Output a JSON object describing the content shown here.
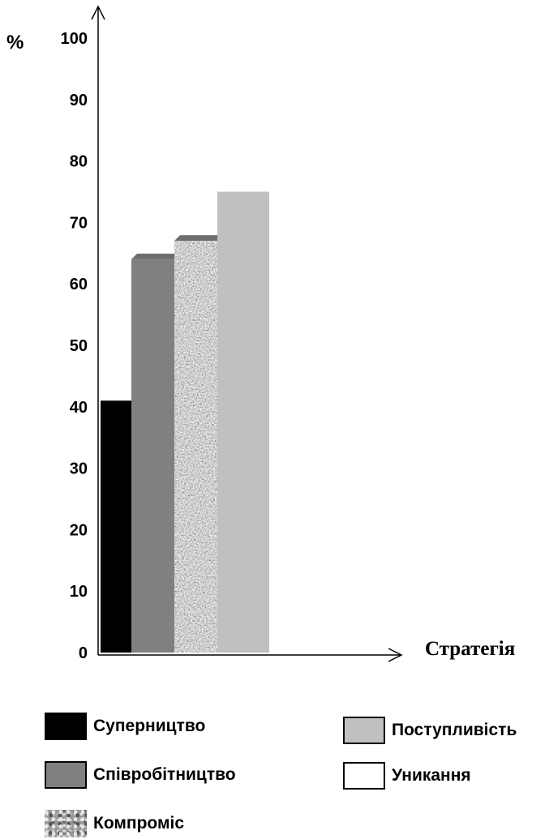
{
  "chart_data": {
    "type": "bar",
    "title": "",
    "ylabel": "%",
    "xlabel": "Стратегія",
    "ylim": [
      0,
      100
    ],
    "yticks": [
      0,
      10,
      20,
      30,
      40,
      50,
      60,
      70,
      80,
      90,
      100
    ],
    "grid": false,
    "legend_position": "bottom",
    "series": [
      {
        "name": "Суперництво",
        "value": 41,
        "color": "#000000",
        "style": "solid"
      },
      {
        "name": "Співробітництво",
        "value": 64,
        "color": "#808080",
        "style": "solid-3d"
      },
      {
        "name": "Компроміс",
        "value": 67,
        "color": "#9a9a9a",
        "style": "textured-3d"
      },
      {
        "name": "Поступливість",
        "value": 75,
        "color": "#c0c0c0",
        "style": "solid"
      },
      {
        "name": "Уникання",
        "value": 0,
        "color": "#ffffff",
        "style": "outline"
      }
    ]
  }
}
